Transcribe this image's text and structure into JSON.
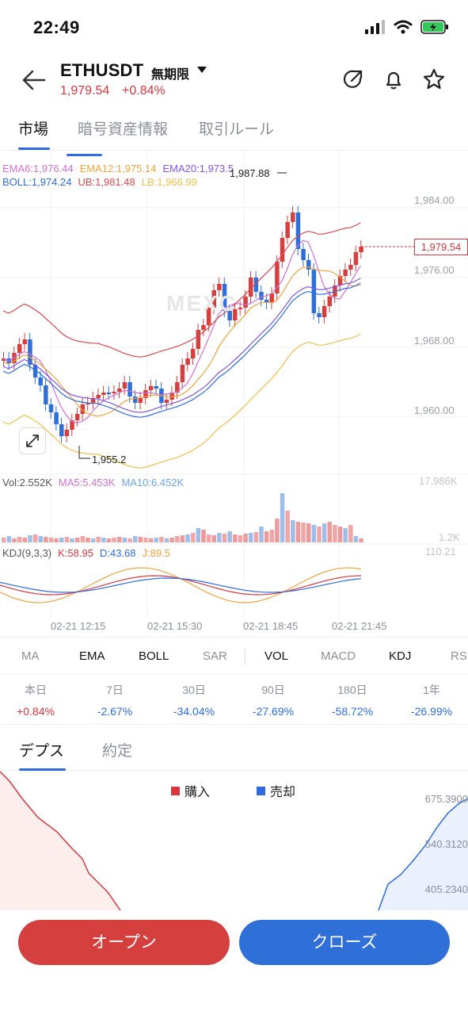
{
  "status": {
    "time": "22:49"
  },
  "header": {
    "pair": "ETHUSDT",
    "pair_suffix": "無期限",
    "price": "1,979.54",
    "change": "+0.84%"
  },
  "tabs": [
    "市場",
    "暗号資産情報",
    "取引ルール"
  ],
  "chart": {
    "ema": [
      "EMA6:1,976.44",
      "EMA12:1,975.14",
      "EMA20:1,973.5"
    ],
    "boll": [
      "BOLL:1,974.24",
      "UB:1,981.48",
      "LB:1,966.99"
    ],
    "high_label": "1,987.88",
    "low_label": "1,955.2",
    "last_price_tag": "1,979.54",
    "watermark": "MEXC",
    "price_axis": [
      "1,984.00",
      "1,976.00",
      "1,968.00",
      "1,960.00"
    ],
    "volume": [
      "Vol:2.552K",
      "MA5:5.453K",
      "MA10:6.452K"
    ],
    "volume_axis_top": "17.986K",
    "volume_axis_bottom": "1.2K",
    "kdj": [
      "KDJ(9,3,3)",
      "K:58.95",
      "D:43.68",
      "J:89.5"
    ],
    "kdj_axis_top": "110.21",
    "time_labels": [
      "02-21 12:15",
      "02-21 15:30",
      "02-21 18:45",
      "02-21 21:45"
    ]
  },
  "indicator_tabs": [
    "MA",
    "EMA",
    "BOLL",
    "SAR",
    "VOL",
    "MACD",
    "KDJ",
    "RS"
  ],
  "performance": [
    {
      "label": "本日",
      "value": "+0.84%"
    },
    {
      "label": "7日",
      "value": "-2.67%"
    },
    {
      "label": "30日",
      "value": "-34.04%"
    },
    {
      "label": "90日",
      "value": "-27.69%"
    },
    {
      "label": "180日",
      "value": "-58.72%"
    },
    {
      "label": "1年",
      "value": "-26.99%"
    }
  ],
  "depth_tabs": [
    "デプス",
    "約定"
  ],
  "depth": {
    "buy_label": "購入",
    "sell_label": "売却",
    "axis": [
      "675.3900",
      "540.3120",
      "405.2340"
    ]
  },
  "buttons": {
    "open": "オープン",
    "close": "クローズ"
  },
  "colors": {
    "up": "#d9363e",
    "down": "#2d6be4",
    "accent": "#2d6be4"
  },
  "icons": [
    "back-arrow-icon",
    "caret-down-icon",
    "share-icon",
    "bell-icon",
    "star-icon",
    "expand-icon"
  ]
}
